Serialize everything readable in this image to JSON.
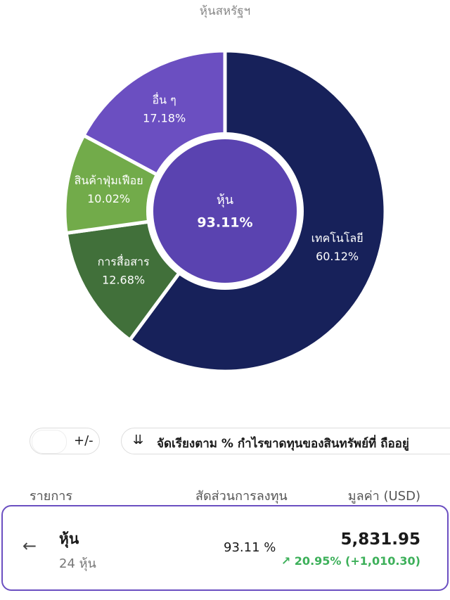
{
  "header": {
    "title": "หุ้นสหรัฐฯ"
  },
  "chart_data": {
    "type": "pie",
    "center_label": "หุ้น",
    "center_value": "93.11%",
    "categories": [
      "เทคโนโลยี",
      "การสื่อสาร",
      "สินค้าฟุ่มเฟือย",
      "อื่น ๆ"
    ],
    "values": [
      60.12,
      12.68,
      10.02,
      17.18
    ],
    "value_labels": [
      "60.12%",
      "12.68%",
      "10.02%",
      "17.18%"
    ],
    "colors": [
      "#17215a",
      "#41703a",
      "#72ab4a",
      "#6b4fc1"
    ],
    "center_color": "#5a43b0"
  },
  "controls": {
    "toggle": "+/-",
    "sort": "จัดเรียงตาม % กำไรขาดทุนของสินทรัพย์ที่ ถืออยู่"
  },
  "table": {
    "headers": [
      "รายการ",
      "สัดส่วนการลงทุน",
      "มูลค่า (USD)"
    ],
    "rows": [
      {
        "name": "หุ้น",
        "count": "24 หุ้น",
        "share": "93.11 %",
        "value": "5,831.95",
        "change": "20.95% (+1,010.30)"
      }
    ]
  }
}
